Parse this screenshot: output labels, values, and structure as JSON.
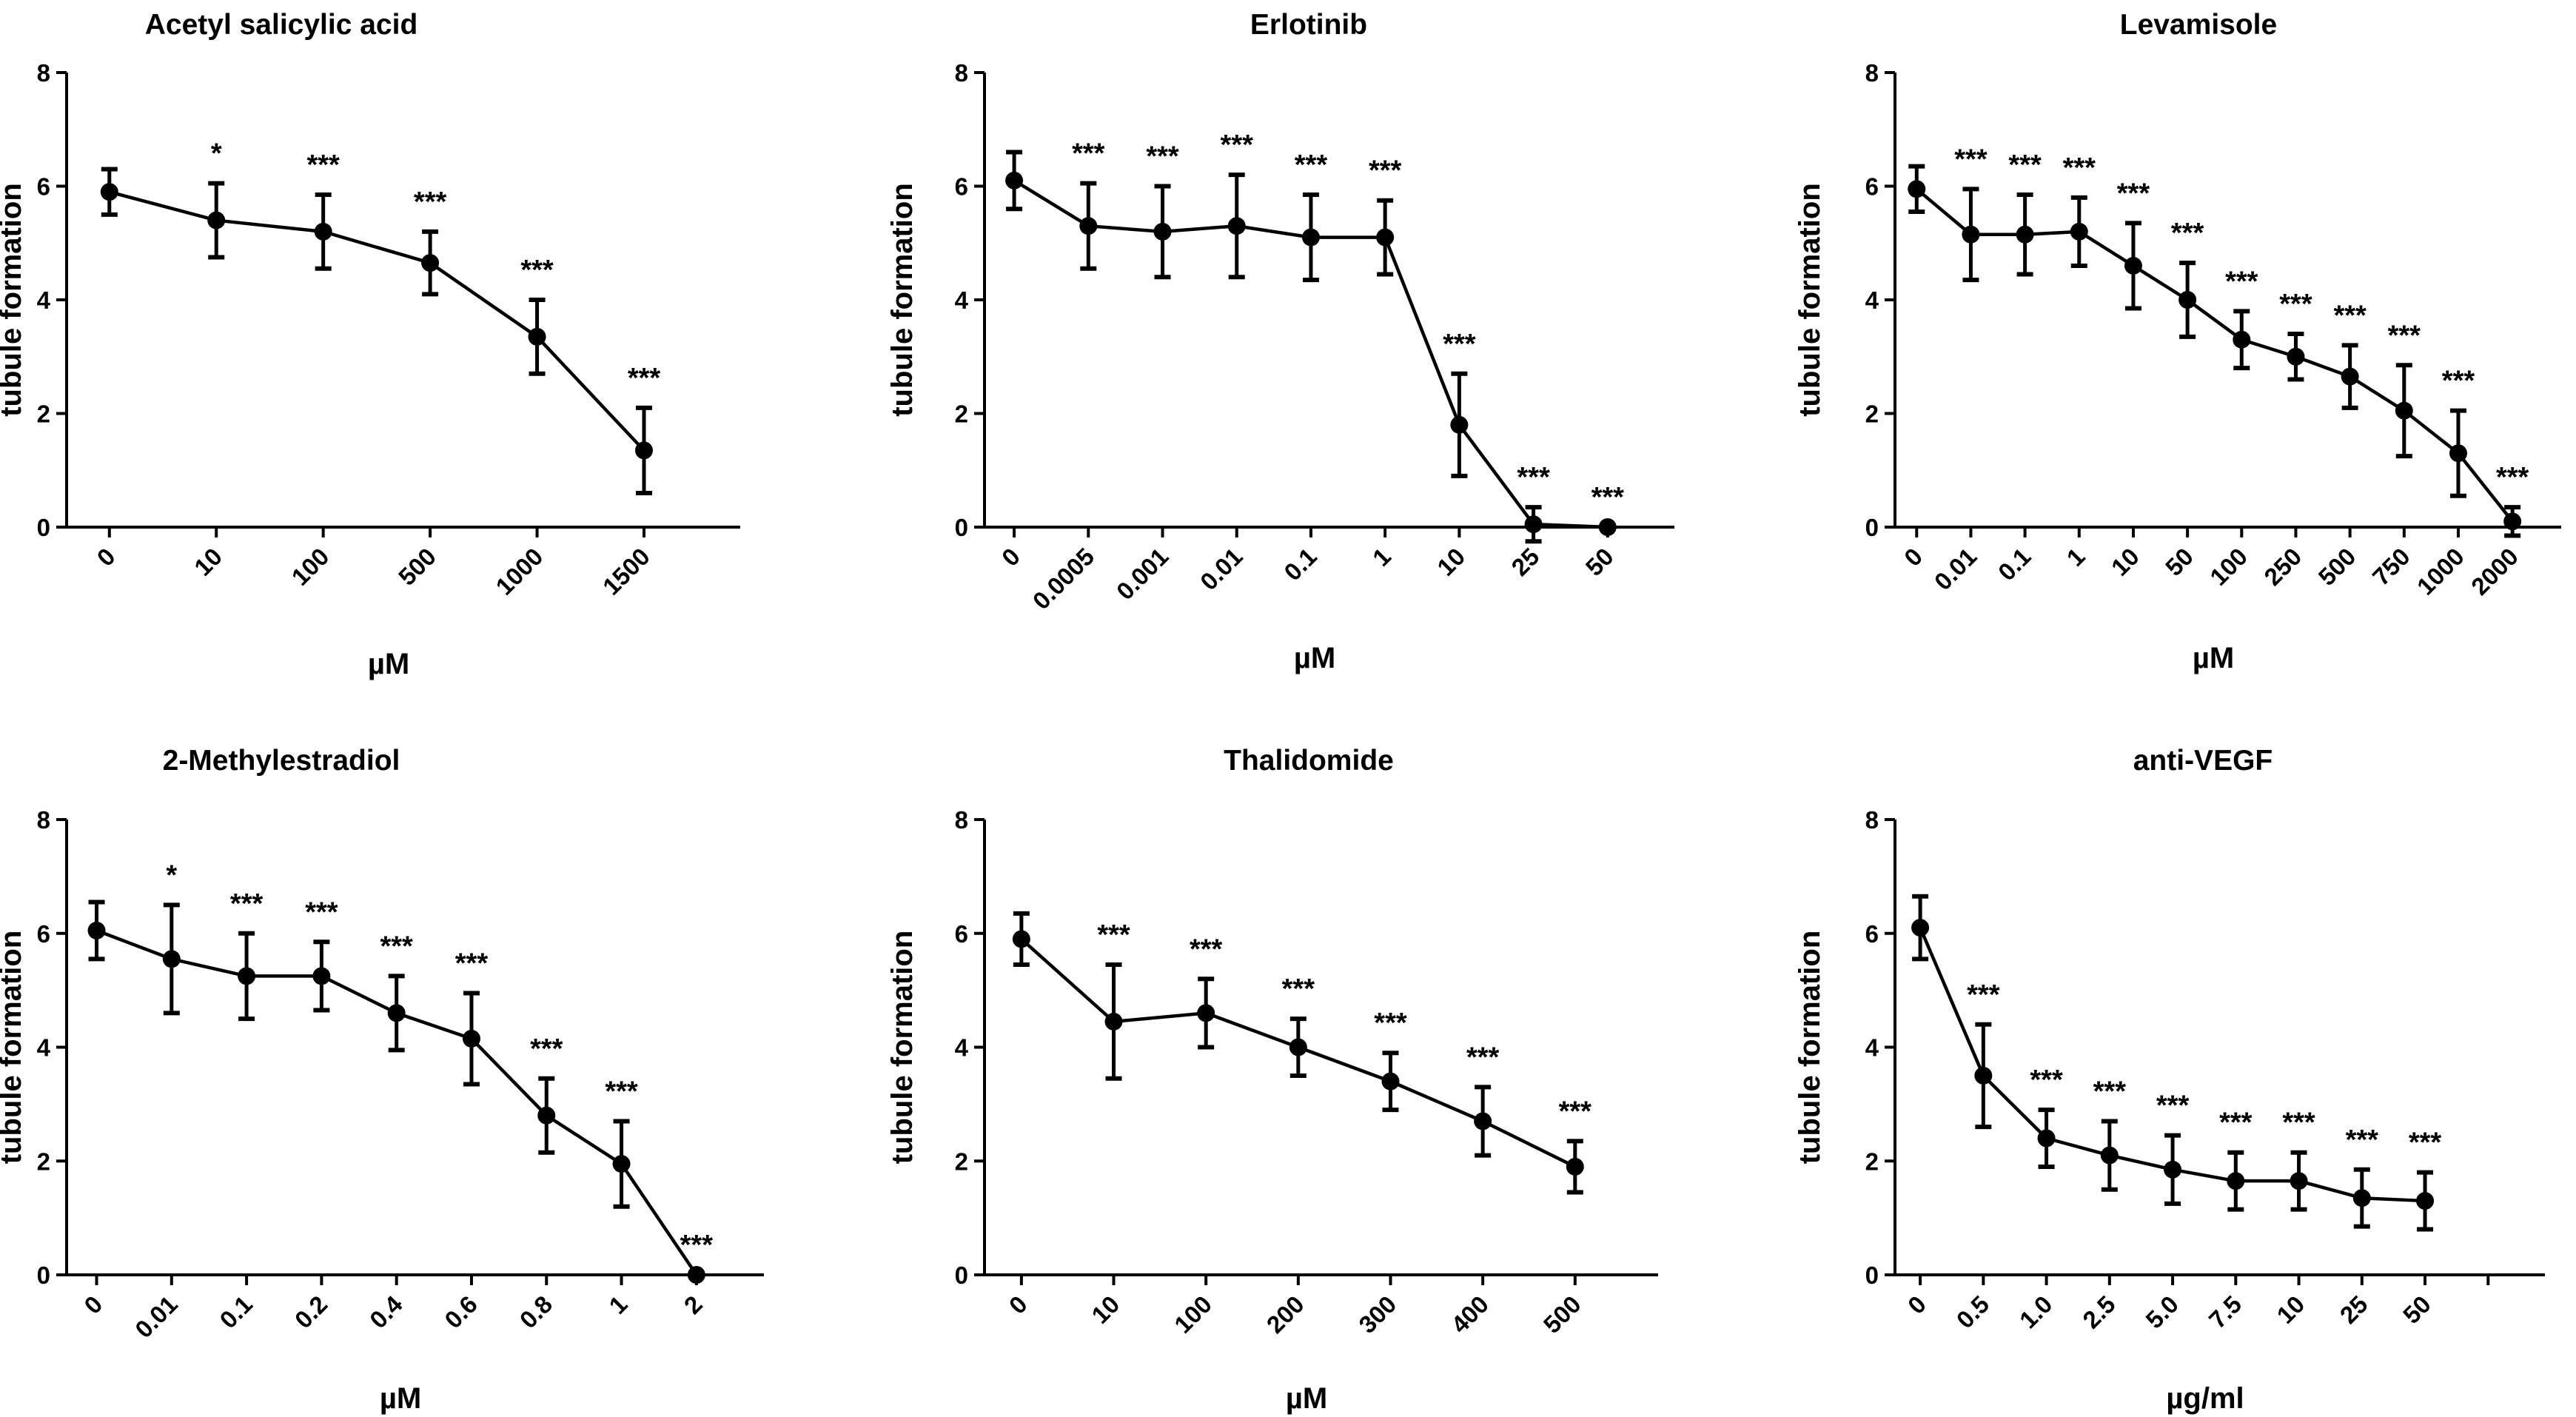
{
  "chart_data": [
    {
      "type": "line",
      "title": "Acetyl salicylic acid",
      "xlabel": "µM",
      "ylabel": "tubule formation",
      "ylim": [
        0,
        8
      ],
      "yticks": [
        "0",
        "2",
        "4",
        "6",
        "8"
      ],
      "categories": [
        "0",
        "10",
        "100",
        "500",
        "1000",
        "1500"
      ],
      "values": [
        5.9,
        5.4,
        5.2,
        4.65,
        3.35,
        1.35
      ],
      "errors": [
        0.4,
        0.65,
        0.65,
        0.55,
        0.65,
        0.75
      ],
      "significance": [
        "",
        "*",
        "***",
        "***",
        "***",
        "***"
      ]
    },
    {
      "type": "line",
      "title": "Erlotinib",
      "xlabel": "µM",
      "ylabel": "tubule formation",
      "ylim": [
        0,
        8
      ],
      "yticks": [
        "0",
        "2",
        "4",
        "6",
        "8"
      ],
      "categories": [
        "0",
        "0.0005",
        "0.001",
        "0.01",
        "0.1",
        "1",
        "10",
        "25",
        "50"
      ],
      "values": [
        6.1,
        5.3,
        5.2,
        5.3,
        5.1,
        5.1,
        1.8,
        0.05,
        0.0
      ],
      "errors": [
        0.5,
        0.75,
        0.8,
        0.9,
        0.75,
        0.65,
        0.9,
        0.3,
        0.0
      ],
      "significance": [
        "",
        "***",
        "***",
        "***",
        "***",
        "***",
        "***",
        "***",
        "***"
      ]
    },
    {
      "type": "line",
      "title": "Levamisole",
      "xlabel": "µM",
      "ylabel": "tubule formation",
      "ylim": [
        0,
        8
      ],
      "yticks": [
        "0",
        "2",
        "4",
        "6",
        "8"
      ],
      "categories": [
        "0",
        "0.01",
        "0.1",
        "1",
        "10",
        "50",
        "100",
        "250",
        "500",
        "750",
        "1000",
        "2000"
      ],
      "values": [
        5.95,
        5.15,
        5.15,
        5.2,
        4.6,
        4.0,
        3.3,
        3.0,
        2.65,
        2.05,
        1.3,
        0.1
      ],
      "errors": [
        0.4,
        0.8,
        0.7,
        0.6,
        0.75,
        0.65,
        0.5,
        0.4,
        0.55,
        0.8,
        0.75,
        0.25
      ],
      "significance": [
        "",
        "***",
        "***",
        "***",
        "***",
        "***",
        "***",
        "***",
        "***",
        "***",
        "***",
        "***"
      ]
    },
    {
      "type": "line",
      "title": "2-Methylestradiol",
      "xlabel": "µM",
      "ylabel": "tubule formation",
      "ylim": [
        0,
        8
      ],
      "yticks": [
        "0",
        "2",
        "4",
        "6",
        "8"
      ],
      "categories": [
        "0",
        "0.01",
        "0.1",
        "0.2",
        "0.4",
        "0.6",
        "0.8",
        "1",
        "2"
      ],
      "values": [
        6.05,
        5.55,
        5.25,
        5.25,
        4.6,
        4.15,
        2.8,
        1.95,
        0.0
      ],
      "errors": [
        0.5,
        0.95,
        0.75,
        0.6,
        0.65,
        0.8,
        0.65,
        0.75,
        0.0
      ],
      "significance": [
        "",
        "*",
        "***",
        "***",
        "***",
        "***",
        "***",
        "***",
        "***"
      ]
    },
    {
      "type": "line",
      "title": "Thalidomide",
      "xlabel": "µM",
      "ylabel": "tubule formation",
      "ylim": [
        0,
        8
      ],
      "yticks": [
        "0",
        "2",
        "4",
        "6",
        "8"
      ],
      "categories": [
        "0",
        "10",
        "100",
        "200",
        "300",
        "400",
        "500"
      ],
      "values": [
        5.9,
        4.45,
        4.6,
        4.0,
        3.4,
        2.7,
        1.9
      ],
      "errors": [
        0.45,
        1.0,
        0.6,
        0.5,
        0.5,
        0.6,
        0.45
      ],
      "significance": [
        "",
        "***",
        "***",
        "***",
        "***",
        "***",
        "***"
      ]
    },
    {
      "type": "line",
      "title": "anti-VEGF",
      "xlabel": "µg/ml",
      "ylabel": "tubule formation",
      "ylim": [
        0,
        8
      ],
      "yticks": [
        "0",
        "2",
        "4",
        "6",
        "8"
      ],
      "categories": [
        "0",
        "0.5",
        "1.0",
        "2.5",
        "5.0",
        "7.5",
        "10",
        "25",
        "50"
      ],
      "extra_slots": 1,
      "values": [
        6.1,
        3.5,
        2.4,
        2.1,
        1.85,
        1.65,
        1.65,
        1.35,
        1.3
      ],
      "errors": [
        0.55,
        0.9,
        0.5,
        0.6,
        0.6,
        0.5,
        0.5,
        0.5,
        0.5
      ],
      "significance": [
        "",
        "***",
        "***",
        "***",
        "***",
        "***",
        "***",
        "***",
        "***"
      ]
    }
  ]
}
